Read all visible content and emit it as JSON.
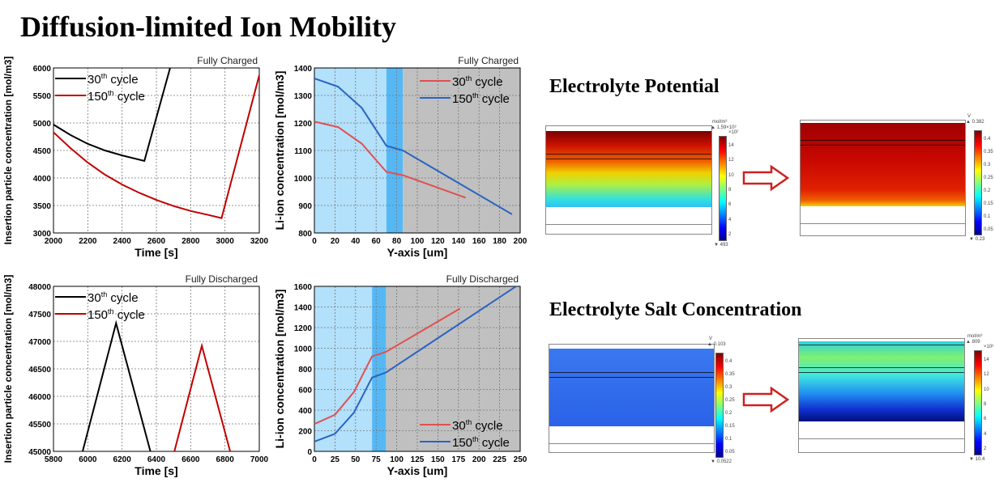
{
  "title": "Diffusion-limited Ion Mobility",
  "chart_data": [
    {
      "type": "line",
      "annotation": "Fully Charged",
      "xlabel": "Time [s]",
      "ylabel": "Insertion particle concentration [mol/m3]",
      "xlim": [
        2000,
        3200
      ],
      "ylim": [
        3000,
        6000
      ],
      "xticks": [
        2000,
        2200,
        2400,
        2600,
        2800,
        3000,
        3200
      ],
      "yticks": [
        3000,
        3500,
        4000,
        4500,
        5000,
        5500,
        6000
      ],
      "grid": true,
      "legend": "top-left",
      "series": [
        {
          "name": "30th cycle",
          "color": "#000000",
          "points": [
            [
              2000,
              4970
            ],
            [
              2100,
              4780
            ],
            [
              2200,
              4620
            ],
            [
              2300,
              4500
            ],
            [
              2400,
              4410
            ],
            [
              2530,
              4310
            ],
            [
              2680,
              6000
            ]
          ]
        },
        {
          "name": "150th cycle",
          "color": "#c00000",
          "points": [
            [
              2000,
              4830
            ],
            [
              2100,
              4540
            ],
            [
              2200,
              4280
            ],
            [
              2300,
              4060
            ],
            [
              2400,
              3880
            ],
            [
              2500,
              3730
            ],
            [
              2600,
              3600
            ],
            [
              2700,
              3490
            ],
            [
              2800,
              3400
            ],
            [
              2900,
              3330
            ],
            [
              2980,
              3270
            ],
            [
              3200,
              5870
            ]
          ]
        }
      ]
    },
    {
      "type": "line",
      "annotation": "Fully Charged",
      "xlabel": "Y-axis [um]",
      "ylabel": "Li-ion concentration [mol/m3]",
      "xlim": [
        0,
        200
      ],
      "ylim": [
        800,
        1400
      ],
      "xticks": [
        0,
        20,
        40,
        60,
        80,
        100,
        120,
        140,
        160,
        180,
        200
      ],
      "yticks": [
        800,
        900,
        1000,
        1100,
        1200,
        1300,
        1400
      ],
      "grid": true,
      "legend": "top-right",
      "regions": [
        [
          0,
          70,
          "#b3e0fa"
        ],
        [
          70,
          86,
          "#55b8f5"
        ],
        [
          86,
          200,
          "#c0c0c0"
        ]
      ],
      "series": [
        {
          "name": "30th cycle",
          "color": "#e05050",
          "points": [
            [
              0,
              1205
            ],
            [
              23,
              1185
            ],
            [
              46,
              1125
            ],
            [
              70,
              1022
            ],
            [
              86,
              1010
            ],
            [
              147,
              928
            ]
          ]
        },
        {
          "name": "150th cycle",
          "color": "#2a64c0",
          "points": [
            [
              0,
              1362
            ],
            [
              23,
              1332
            ],
            [
              46,
              1255
            ],
            [
              70,
              1117
            ],
            [
              86,
              1100
            ],
            [
              192,
              868
            ]
          ]
        }
      ]
    },
    {
      "type": "line",
      "annotation": "Fully Discharged",
      "xlabel": "Time [s]",
      "ylabel": "Insertion particle concentration [mol/m3]",
      "xlim": [
        5800,
        7000
      ],
      "ylim": [
        45000,
        48000
      ],
      "xticks": [
        5800,
        6000,
        6200,
        6400,
        6600,
        6800,
        7000
      ],
      "yticks": [
        45000,
        45500,
        46000,
        46500,
        47000,
        47500,
        48000
      ],
      "grid": true,
      "legend": "top-left",
      "series": [
        {
          "name": "30th cycle",
          "color": "#000000",
          "points": [
            [
              5970,
              45000
            ],
            [
              6165,
              47330
            ],
            [
              6365,
              45000
            ]
          ]
        },
        {
          "name": "150th cycle",
          "color": "#c00000",
          "points": [
            [
              6505,
              45000
            ],
            [
              6665,
              46920
            ],
            [
              6830,
              45000
            ]
          ]
        }
      ]
    },
    {
      "type": "line",
      "annotation": "Fully Discharged",
      "xlabel": "Y-axis [um]",
      "ylabel": "Li-ion concentration [mol/m3]",
      "xlim": [
        0,
        250
      ],
      "ylim": [
        0,
        1600
      ],
      "xticks": [
        0,
        25,
        50,
        75,
        100,
        125,
        150,
        175,
        200,
        225,
        250
      ],
      "yticks": [
        0,
        200,
        400,
        600,
        800,
        1000,
        1200,
        1400,
        1600
      ],
      "grid": true,
      "legend": "bottom-right",
      "regions": [
        [
          0,
          70,
          "#b3e0fa"
        ],
        [
          70,
          87,
          "#55b8f5"
        ],
        [
          87,
          250,
          "#c0c0c0"
        ]
      ],
      "series": [
        {
          "name": "30th cycle",
          "color": "#e05050",
          "points": [
            [
              0,
              265
            ],
            [
              25,
              355
            ],
            [
              48,
              575
            ],
            [
              70,
              920
            ],
            [
              87,
              965
            ],
            [
              177,
              1385
            ]
          ]
        },
        {
          "name": "150th cycle",
          "color": "#2a64c0",
          "points": [
            [
              0,
              95
            ],
            [
              25,
              170
            ],
            [
              48,
              375
            ],
            [
              70,
              715
            ],
            [
              87,
              765
            ],
            [
              245,
              1600
            ]
          ]
        }
      ]
    }
  ],
  "sims": {
    "potential": {
      "heading": "Electrolyte Potential",
      "left": {
        "unit": "mol/m³",
        "max": "▲ 1.59×10³",
        "exp": "×10²",
        "ticks": [
          "14",
          "12",
          "10",
          "8",
          "6",
          "4",
          "2"
        ],
        "min": "▼ 493"
      },
      "right": {
        "unit": "V",
        "max": "▲ 0.382",
        "ticks": [
          "0.4",
          "0.35",
          "0.3",
          "0.25",
          "0.2",
          "0.15",
          "0.1",
          "0.05"
        ],
        "min": "▼ 0.23"
      }
    },
    "salt": {
      "heading": "Electrolyte Salt Concentration",
      "left": {
        "unit": "V",
        "max": "▲ 0.103",
        "ticks": [
          "0.4",
          "0.35",
          "0.3",
          "0.25",
          "0.2",
          "0.15",
          "0.1",
          "0.05"
        ],
        "min": "▼ 0.0522"
      },
      "right": {
        "unit": "mol/m³",
        "max": "▲ 809",
        "exp": "×10²",
        "ticks": [
          "14",
          "12",
          "10",
          "8",
          "6",
          "4",
          "2"
        ],
        "min": "▼ 10.4"
      }
    }
  },
  "arrow_color": "#d02020"
}
